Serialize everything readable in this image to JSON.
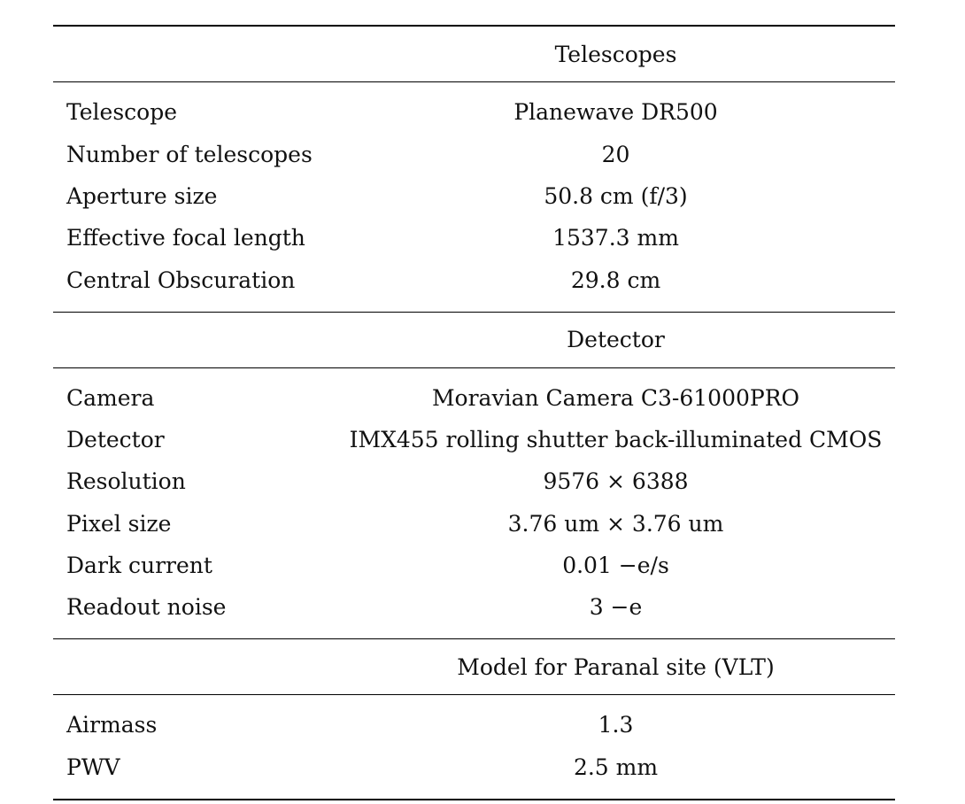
{
  "sections": [
    {
      "title": "Telescopes",
      "rows": [
        {
          "label": "Telescope",
          "value": "Planewave DR500"
        },
        {
          "label": "Number of telescopes",
          "value": "20"
        },
        {
          "label": "Aperture size",
          "value": "50.8 cm (f/3)"
        },
        {
          "label": "Effective focal length",
          "value": "1537.3 mm"
        },
        {
          "label": "Central Obscuration",
          "value": "29.8 cm"
        }
      ]
    },
    {
      "title": "Detector",
      "rows": [
        {
          "label": "Camera",
          "value": "Moravian Camera C3-61000PRO"
        },
        {
          "label": "Detector",
          "value": "IMX455 rolling shutter back-illuminated CMOS"
        },
        {
          "label": "Resolution",
          "value": "9576 × 6388"
        },
        {
          "label": "Pixel size",
          "value": "3.76 um × 3.76 um"
        },
        {
          "label": "Dark current",
          "value": "0.01 −e/s"
        },
        {
          "label": "Readout noise",
          "value": "3 −e"
        }
      ]
    },
    {
      "title": "Model for Paranal site (VLT)",
      "rows": [
        {
          "label": "Airmass",
          "value": "1.3"
        },
        {
          "label": "PWV",
          "value": "2.5 mm"
        }
      ]
    }
  ]
}
